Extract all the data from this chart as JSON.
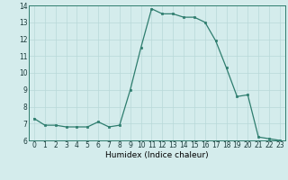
{
  "x": [
    0,
    1,
    2,
    3,
    4,
    5,
    6,
    7,
    8,
    9,
    10,
    11,
    12,
    13,
    14,
    15,
    16,
    17,
    18,
    19,
    20,
    21,
    22,
    23
  ],
  "y": [
    7.3,
    6.9,
    6.9,
    6.8,
    6.8,
    6.8,
    7.1,
    6.8,
    6.9,
    9.0,
    11.5,
    13.8,
    13.5,
    13.5,
    13.3,
    13.3,
    13.0,
    11.9,
    10.3,
    8.6,
    8.7,
    6.2,
    6.1,
    6.0
  ],
  "xlabel": "Humidex (Indice chaleur)",
  "ylim": [
    6,
    14
  ],
  "xlim": [
    -0.5,
    23.5
  ],
  "yticks": [
    6,
    7,
    8,
    9,
    10,
    11,
    12,
    13,
    14
  ],
  "xticks": [
    0,
    1,
    2,
    3,
    4,
    5,
    6,
    7,
    8,
    9,
    10,
    11,
    12,
    13,
    14,
    15,
    16,
    17,
    18,
    19,
    20,
    21,
    22,
    23
  ],
  "line_color": "#2e7d6e",
  "marker_color": "#2e7d6e",
  "bg_color": "#d4ecec",
  "grid_color": "#b8d8d8",
  "label_fontsize": 6.5,
  "tick_fontsize": 5.5
}
